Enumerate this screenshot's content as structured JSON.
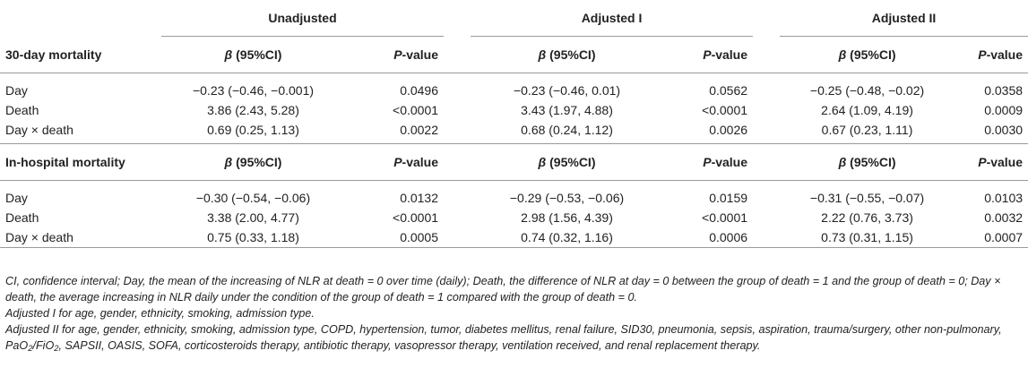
{
  "header": {
    "groups": [
      "Unadjusted",
      "Adjusted I",
      "Adjusted II"
    ],
    "beta_symbol": "β",
    "beta_rest": " (95%CI)",
    "p_italic": "P",
    "p_rest": "-value"
  },
  "sections": [
    {
      "title": "30-day mortality",
      "rows": [
        {
          "label": "Day",
          "cells": [
            "−0.23 (−0.46, −0.001)",
            "0.0496",
            "−0.23 (−0.46, 0.01)",
            "0.0562",
            "−0.25 (−0.48, −0.02)",
            "0.0358"
          ]
        },
        {
          "label": "Death",
          "cells": [
            "3.86 (2.43, 5.28)",
            "<0.0001",
            "3.43 (1.97, 4.88)",
            "<0.0001",
            "2.64 (1.09, 4.19)",
            "0.0009"
          ]
        },
        {
          "label": "Day × death",
          "cells": [
            "0.69 (0.25, 1.13)",
            "0.0022",
            "0.68 (0.24, 1.12)",
            "0.0026",
            "0.67 (0.23, 1.11)",
            "0.0030"
          ]
        }
      ]
    },
    {
      "title": "In-hospital mortality",
      "rows": [
        {
          "label": "Day",
          "cells": [
            "−0.30 (−0.54, −0.06)",
            "0.0132",
            "−0.29 (−0.53, −0.06)",
            "0.0159",
            "−0.31 (−0.55, −0.07)",
            "0.0103"
          ]
        },
        {
          "label": "Death",
          "cells": [
            "3.38 (2.00, 4.77)",
            "<0.0001",
            "2.98 (1.56, 4.39)",
            "<0.0001",
            "2.22 (0.76, 3.73)",
            "0.0032"
          ]
        },
        {
          "label": "Day × death",
          "cells": [
            "0.75 (0.33, 1.18)",
            "0.0005",
            "0.74 (0.32, 1.16)",
            "0.0006",
            "0.73 (0.31, 1.15)",
            "0.0007"
          ]
        }
      ]
    }
  ],
  "footnotes": {
    "definitions": "CI, confidence interval; Day, the mean of the increasing of NLR at death = 0 over time (daily); Death, the difference of NLR at day = 0 between the group of death = 1 and the group of death = 0; Day × death, the average increasing in NLR daily under the condition of the group of death = 1 compared with the group of death = 0.",
    "adjusted_1": "Adjusted I for age, gender, ethnicity, smoking, admission type.",
    "adjusted_2_part1": "Adjusted II for age, gender, ethnicity, smoking, admission type, COPD, hypertension, tumor, diabetes mellitus, renal failure, SID30, pneumonia, sepsis, aspiration, trauma/surgery, other non-pulmonary, PaO",
    "adjusted_2_sub1": "2",
    "adjusted_2_mid": "/FiO",
    "adjusted_2_sub2": "2",
    "adjusted_2_part2": ", SAPSII, OASIS, SOFA, corticosteroids therapy, antibiotic therapy, vasopressor therapy, ventilation received, and renal replacement therapy."
  }
}
